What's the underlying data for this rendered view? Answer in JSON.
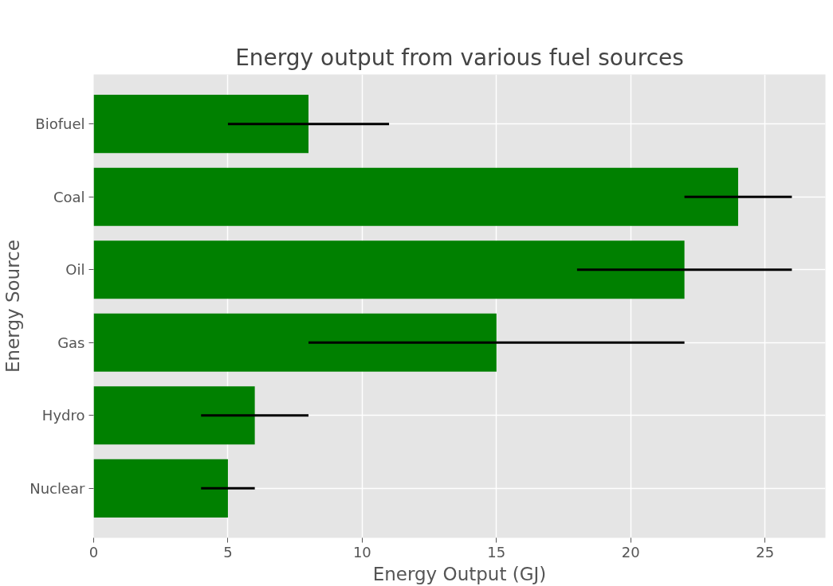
{
  "chart_data": {
    "type": "bar",
    "orientation": "horizontal",
    "title": "Energy output from various fuel sources",
    "xlabel": "Energy Output (GJ)",
    "ylabel": "Energy Source",
    "categories": [
      "Biofuel",
      "Coal",
      "Oil",
      "Gas",
      "Hydro",
      "Nuclear"
    ],
    "values": [
      8,
      24,
      22,
      15,
      6,
      5
    ],
    "errors": [
      3,
      2,
      4,
      7,
      2,
      1
    ],
    "color": "#008000",
    "xlim": [
      0,
      27.25
    ],
    "xticks": [
      0,
      5,
      10,
      15,
      20,
      25
    ],
    "grid": true
  }
}
